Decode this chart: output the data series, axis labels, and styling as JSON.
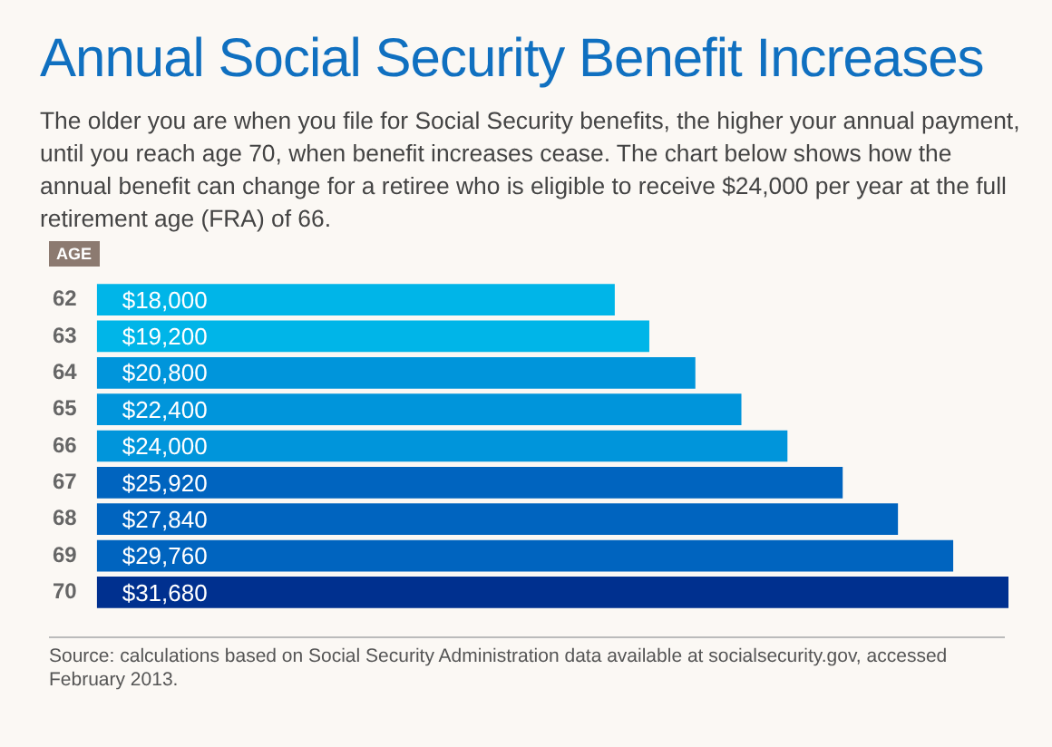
{
  "chart_data": {
    "type": "bar",
    "orientation": "horizontal",
    "title": "Annual Social Security Benefit Increases",
    "subtitle": "The older you are when you file for Social Security benefits, the higher your annual payment, until you reach age 70, when benefit increases cease. The chart below shows how the annual benefit can change for a retiree who is eligible to receive $24,000 per year at the full retirement age (FRA) of 66.",
    "ylabel": "AGE",
    "categories": [
      "62",
      "63",
      "64",
      "65",
      "66",
      "67",
      "68",
      "69",
      "70"
    ],
    "values": [
      18000,
      19200,
      20800,
      22400,
      24000,
      25920,
      27840,
      29760,
      31680
    ],
    "value_labels": [
      "$18,000",
      "$19,200",
      "$20,800",
      "$22,400",
      "$24,000",
      "$25,920",
      "$27,840",
      "$29,760",
      "$31,680"
    ],
    "colors": [
      "#00b5e8",
      "#00b5e8",
      "#0095db",
      "#0095db",
      "#0095db",
      "#0064bf",
      "#0064bf",
      "#0064bf",
      "#00308f"
    ],
    "legend": false,
    "annotations": [
      "Source: calculations based on Social Security Administration data available at socialsecurity.gov, accessed February 2013."
    ]
  }
}
